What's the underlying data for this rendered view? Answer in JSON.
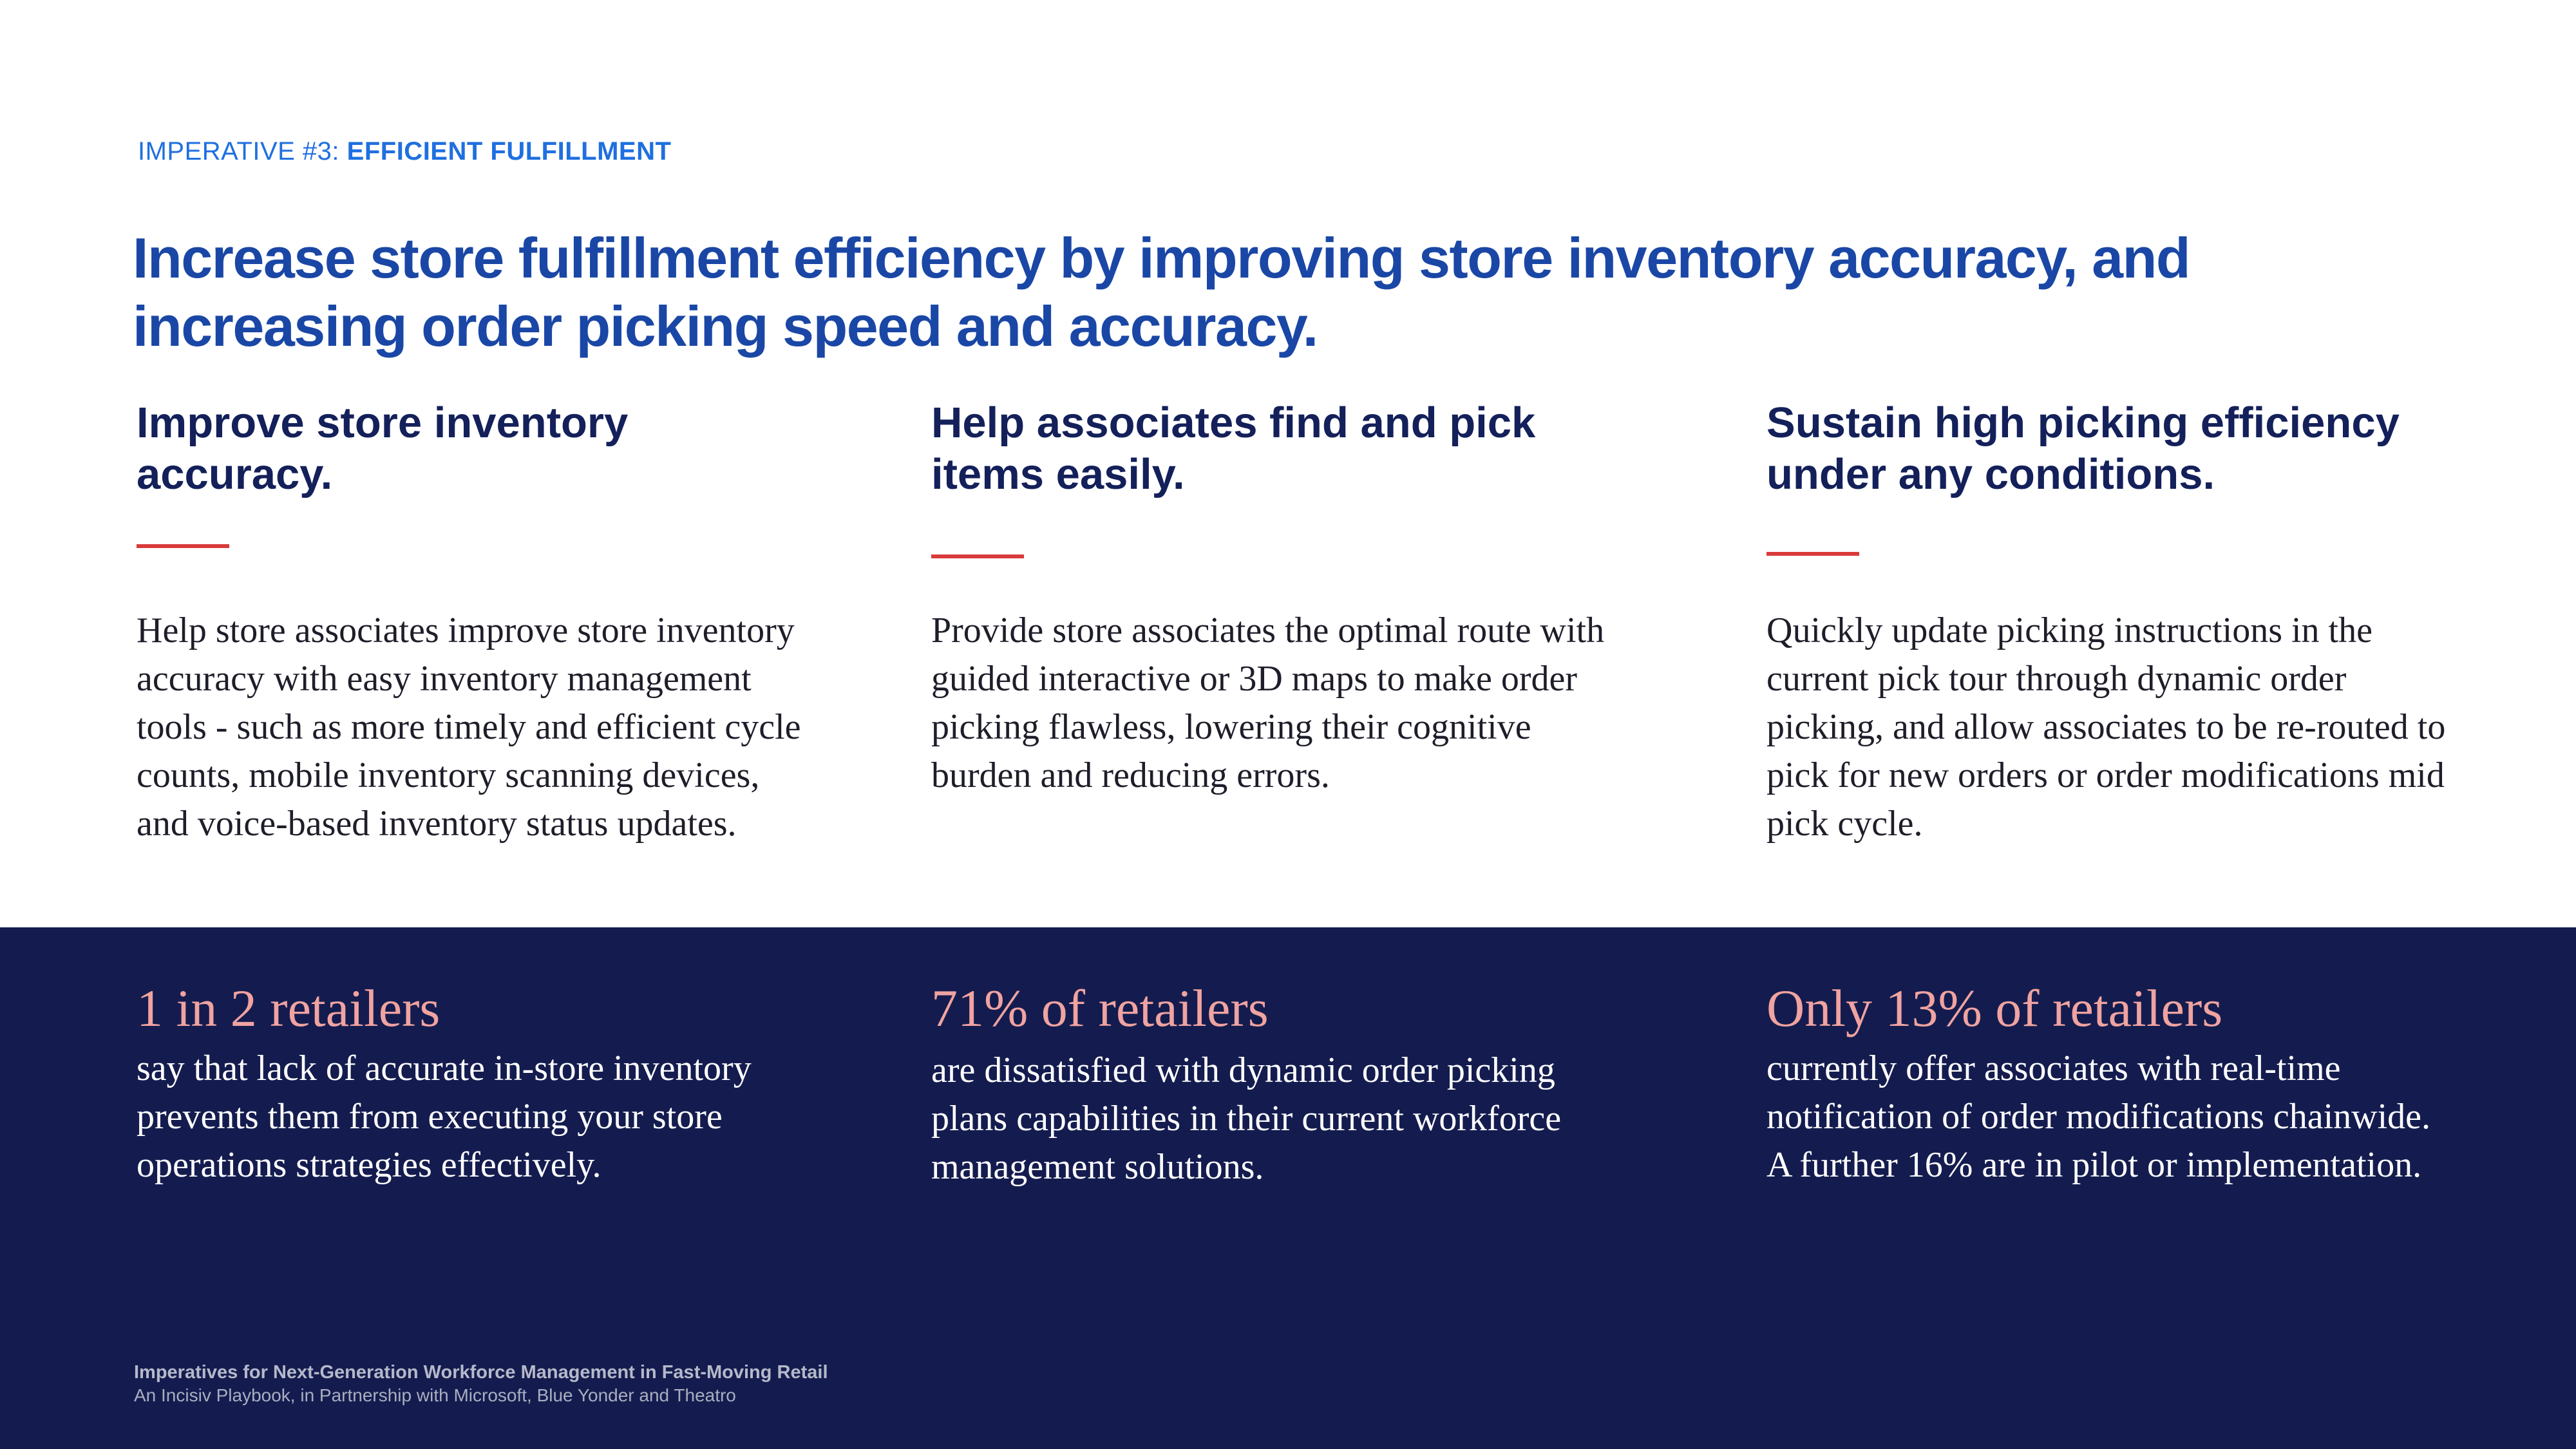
{
  "header": {
    "kicker_prefix": "IMPERATIVE #3: ",
    "kicker_strong": "EFFICIENT FULFILLMENT",
    "headline": "Increase store fulfillment efficiency by improving store inventory accuracy, and increasing order picking speed and accuracy."
  },
  "columns": [
    {
      "title_line1": "Improve store inventory",
      "title_line2": "accuracy.",
      "body": "Help store associates improve store inventory accuracy with easy inventory management tools - such as more timely and efficient cycle counts, mobile inventory scanning devices, and voice-based inventory status updates.",
      "stat": "1 in 2 retailers",
      "stat_body": "say that lack of accurate in-store inventory prevents them from executing your store operations strategies effectively."
    },
    {
      "title_line1": "Help associates find and pick",
      "title_line2": "items easily.",
      "body": "Provide store associates the optimal route with guided interactive or 3D maps to make order picking flawless, lowering their cognitive burden and reducing errors.",
      "stat": "71% of retailers",
      "stat_body": "are dissatisfied with dynamic order picking plans capabilities in their current workforce management solutions."
    },
    {
      "title_line1": "Sustain high picking efficiency",
      "title_line2": "under any conditions.",
      "body": "Quickly update picking instructions in the current pick tour through dynamic order picking, and allow associates to be re-routed to pick for new orders or order modifications mid pick cycle.",
      "stat": "Only 13% of retailers",
      "stat_body": "currently offer associates with real-time notification of order modifications chainwide. A further 16% are in pilot or implementation."
    }
  ],
  "footer": {
    "title": "Imperatives for Next-Generation Workforce Management in Fast-Moving Retail",
    "subtitle": "An Incisiv Playbook, in Partnership with Microsoft, Blue Yonder and Theatro"
  },
  "colors": {
    "kicker": "#1f6fe0",
    "headline": "#1a47a6",
    "column_title": "#14205a",
    "accent_rule": "#d93a3a",
    "band_background": "#141c4f",
    "stat_highlight": "#f0a3a0"
  }
}
